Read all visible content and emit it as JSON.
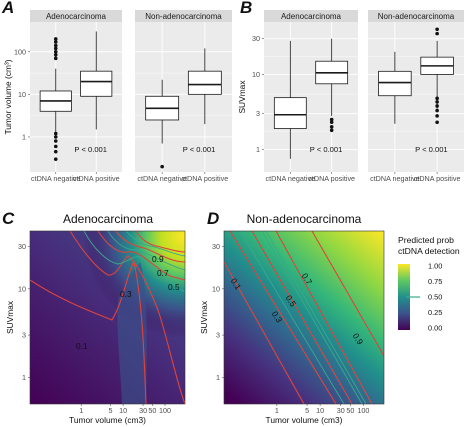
{
  "panels": {
    "A": {
      "letter": "A"
    },
    "B": {
      "letter": "B"
    },
    "C": {
      "letter": "C"
    },
    "D": {
      "letter": "D"
    }
  },
  "colors": {
    "panel_bg": "#ebebeb",
    "grid": "#ffffff",
    "strip_bg": "#d9d9d9",
    "box_fill": "#ffffff",
    "box_line": "#1a1a1a",
    "contour_red": "#e0443a",
    "contour_teal": "#3aa98b",
    "viridis_low": "#440154",
    "viridis_mid": "#21908c",
    "viridis_high": "#fde725"
  },
  "chart_data": [
    {
      "id": "A",
      "type": "box",
      "ylabel": "Tumor volume (cm³)",
      "yscale": "log",
      "yticks": [
        1,
        10,
        100
      ],
      "ylim": [
        0.15,
        500
      ],
      "categories": [
        "ctDNA  negative",
        "ctDNA  positive"
      ],
      "facets": [
        {
          "name": "Adenocarcinoma",
          "pvalue": "P < 0.001",
          "boxes": [
            {
              "min": 1.3,
              "q1": 4.0,
              "median": 7.0,
              "q3": 12.0,
              "max": 40,
              "outliers": [
                0.3,
                0.45,
                0.6,
                0.8,
                1.0,
                1.2,
                70,
                85,
                100,
                120,
                140,
                170,
                200
              ]
            },
            {
              "min": 1.5,
              "q1": 9.0,
              "median": 20.0,
              "q3": 35.0,
              "max": 300,
              "outliers": []
            }
          ]
        },
        {
          "name": "Non-adenocarcinoma",
          "pvalue": "P < 0.001",
          "boxes": [
            {
              "min": 0.7,
              "q1": 2.5,
              "median": 4.7,
              "q3": 9.0,
              "max": 22,
              "outliers": [
                0.2
              ]
            },
            {
              "min": 2.0,
              "q1": 10.0,
              "median": 17.0,
              "q3": 35.0,
              "max": 120,
              "outliers": []
            }
          ]
        }
      ]
    },
    {
      "id": "B",
      "type": "box",
      "ylabel": "SUVmax",
      "yscale": "log",
      "yticks": [
        1,
        3,
        10,
        30
      ],
      "ylim": [
        0.5,
        50
      ],
      "categories": [
        "ctDNA  negative",
        "ctDNA  positive"
      ],
      "facets": [
        {
          "name": "Adenocarcinoma",
          "pvalue": "P < 0.001",
          "boxes": [
            {
              "min": 0.75,
              "q1": 1.9,
              "median": 2.9,
              "q3": 4.9,
              "max": 28,
              "outliers": []
            },
            {
              "min": 2.8,
              "q1": 7.5,
              "median": 10.5,
              "q3": 15.0,
              "max": 30,
              "outliers": [
                1.8,
                2.0,
                2.3,
                2.5
              ]
            }
          ]
        },
        {
          "name": "Non-adenocarcinoma",
          "pvalue": "P < 0.001",
          "boxes": [
            {
              "min": 2.2,
              "q1": 5.2,
              "median": 7.8,
              "q3": 11.0,
              "max": 20,
              "outliers": []
            },
            {
              "min": 3.5,
              "q1": 10.0,
              "median": 13.0,
              "q3": 17.0,
              "max": 28,
              "outliers": [
                2.3,
                2.8,
                3.3,
                3.8,
                4.3,
                4.8,
                35,
                40
              ]
            }
          ]
        }
      ]
    },
    {
      "id": "C",
      "type": "heatmap",
      "title": "Adenocarcinoma",
      "xlabel": "Tumor volume (cm3)",
      "ylabel": "SUVmax",
      "xscale": "log",
      "yscale": "log",
      "xticks": [
        "1",
        "5",
        "10",
        "30",
        "50",
        "100"
      ],
      "yticks": [
        "1",
        "3",
        "10",
        "30"
      ],
      "contour_levels": [
        0.1,
        0.3,
        0.5,
        0.7,
        0.9
      ],
      "labeled_levels": [
        "0.1",
        "0.3",
        "0.5",
        "0.7",
        "0.9"
      ]
    },
    {
      "id": "D",
      "type": "heatmap",
      "title": "Non-adenocarcinoma",
      "xlabel": "Tumor volume (cm3)",
      "ylabel": "SUVmax",
      "xscale": "log",
      "yscale": "log",
      "xticks": [
        "1",
        "5",
        "10",
        "30",
        "50",
        "100"
      ],
      "yticks": [
        "1",
        "3",
        "10",
        "30"
      ],
      "contour_levels": [
        0.1,
        0.3,
        0.5,
        0.7,
        0.9
      ],
      "labeled_levels": [
        "0.1",
        "0.3",
        "0.5",
        "0.7",
        "0.9"
      ]
    }
  ],
  "legend": {
    "title_line1": "Predicted prob",
    "title_line2": "ctDNA detection",
    "entries": [
      "1.00",
      "0.75",
      "0.50",
      "0.25",
      "0.00"
    ]
  }
}
